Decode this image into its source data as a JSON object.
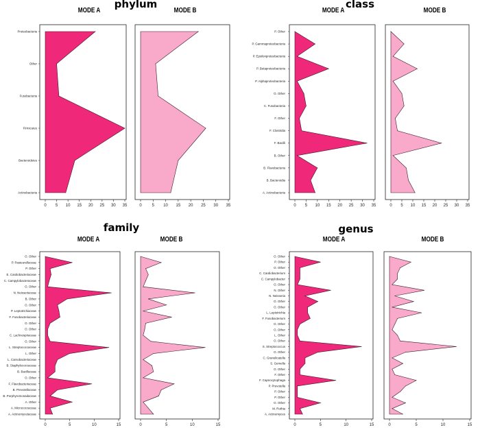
{
  "chart_data": [
    {
      "type": "area",
      "title": "phylum",
      "panel_titles": [
        "MODE A",
        "MODE B"
      ],
      "categories": [
        "Proteobacteria",
        "Other",
        "Fusobacteria",
        "Firmicutes",
        "Bacteroidetes",
        "Actinobacteria"
      ],
      "series": [
        {
          "name": "MODE A",
          "values": [
            22,
            5,
            6,
            35,
            13,
            9
          ],
          "color": "#f0287a"
        },
        {
          "name": "MODE B",
          "values": [
            23,
            6,
            7,
            26,
            15,
            12
          ],
          "color": "#f9aacb"
        }
      ],
      "xlim": [
        0,
        35
      ],
      "xticks": [
        0,
        5,
        10,
        15,
        20,
        25,
        30,
        35
      ]
    },
    {
      "type": "area",
      "title": "class",
      "panel_titles": [
        "MODE A",
        "MODE B"
      ],
      "categories": [
        "P. Other",
        "P. Gammaproteobacteria",
        "P. Epsilonproteobacteria",
        "P. Betaproteobacteria",
        "P. Alphaproteobacteria",
        "O. Other",
        "C. Fusobacteria",
        "F. Other",
        "F. Clostridia",
        "F. Bacilli",
        "B. Other",
        "B. Flavobacteria",
        "B. Bacteroidia",
        "A. Actinobacteria"
      ],
      "series": [
        {
          "name": "MODE A",
          "values": [
            0,
            9,
            1,
            15,
            1,
            4,
            5,
            2,
            3,
            32,
            1,
            10,
            7,
            9
          ],
          "color": "#f0287a"
        },
        {
          "name": "MODE B",
          "values": [
            0,
            6,
            1,
            12,
            1,
            5,
            6,
            2,
            3,
            23,
            1,
            7,
            8,
            11
          ],
          "color": "#f9aacb"
        }
      ],
      "xlim": [
        0,
        35
      ],
      "xticks": [
        0,
        5,
        10,
        15,
        20,
        25,
        30,
        35
      ]
    },
    {
      "type": "area",
      "title": "family",
      "panel_titles": [
        "MODE A",
        "MODE B"
      ],
      "categories": [
        "O. Other",
        "P. Pasteurellaceae",
        "P. Other",
        "E. Cardiobacteriaceae",
        "C. Campylobacteraceae",
        "O. Other",
        "N. Neisseriaceae",
        "B. Other",
        "O. Other",
        "P. Leptotrichiaceae",
        "F. Fusobacteriaceae",
        "O. Other",
        "O. Other",
        "C. Lachnospiraceae",
        "O. Other",
        "L. Streptococcaceae",
        "L. Other",
        "L. Carnobacteriaceae",
        "B. Staphylococcaceae",
        "B. Bacillaceae",
        "O. Other",
        "F. Flavobacteriaceae",
        "B. Prevotellaceae",
        "B. Porphyromonadaceae",
        "A. Other",
        "A. Micrococcaceae",
        "A. Actinomycetaceae"
      ],
      "series": [
        {
          "name": "MODE A",
          "values": [
            0,
            5.5,
            1,
            1.2,
            0.8,
            0.5,
            13.5,
            4.5,
            2.5,
            2.8,
            3,
            1,
            0.5,
            0.5,
            1,
            13,
            5,
            2.5,
            2,
            2,
            0.5,
            9.5,
            2.5,
            1,
            5.5,
            1,
            1.5
          ],
          "color": "#f0287a"
        },
        {
          "name": "MODE B",
          "values": [
            0,
            4,
            1,
            1.5,
            1,
            0.5,
            10.5,
            1.5,
            5,
            0.5,
            6,
            1,
            0.8,
            0.5,
            2,
            12.5,
            2.5,
            0.5,
            2.2,
            2.5,
            0.5,
            6.5,
            4,
            3.5,
            0.5,
            1.5,
            2.5
          ],
          "color": "#f9aacb"
        }
      ],
      "xlim": [
        0,
        15
      ],
      "xticks": [
        0,
        5,
        10,
        15
      ]
    },
    {
      "type": "area",
      "title": "genus",
      "panel_titles": [
        "MODE A",
        "MODE B"
      ],
      "categories": [
        "O. Other",
        "P. Other",
        "O. Other",
        "C. Cardiobacterium",
        "C. Campylobacter",
        "O. Other",
        "N. Other",
        "N. Neisseria",
        "O. Other",
        "O. Other",
        "L. Leptotrichia",
        "F. Fusobacterium",
        "O. Other",
        "O. Other",
        "L. Other",
        "O. Other",
        "S. Streptococcus",
        "O. Other",
        "C. Granulicatella",
        "S. Gemella",
        "O. Other",
        "F. Other",
        "F. Capnocytophaga",
        "P. Prevotella",
        "P. Other",
        "P. Other",
        "O. Other",
        "M. Rothia",
        "A. Actinomyces"
      ],
      "series": [
        {
          "name": "MODE A",
          "values": [
            0,
            5,
            1,
            1,
            1,
            0.5,
            7,
            2,
            4.5,
            2.5,
            2.5,
            3,
            1,
            0.5,
            0.5,
            1,
            13,
            4.5,
            2,
            2,
            1,
            1,
            8,
            0.5,
            0.5,
            0.5,
            5,
            1,
            1.5
          ],
          "color": "#f0287a"
        },
        {
          "name": "MODE B",
          "values": [
            0,
            4,
            2,
            1.5,
            1.5,
            0.5,
            6.5,
            1,
            4.5,
            0.5,
            6,
            1.5,
            1,
            0.5,
            1.5,
            2,
            12.5,
            3,
            0.5,
            2.5,
            0.5,
            1,
            5,
            3,
            2,
            0.5,
            3,
            0.5,
            2.5
          ],
          "color": "#f9aacb"
        }
      ],
      "xlim": [
        0,
        15
      ],
      "xticks": [
        0,
        5,
        10,
        15
      ]
    }
  ]
}
